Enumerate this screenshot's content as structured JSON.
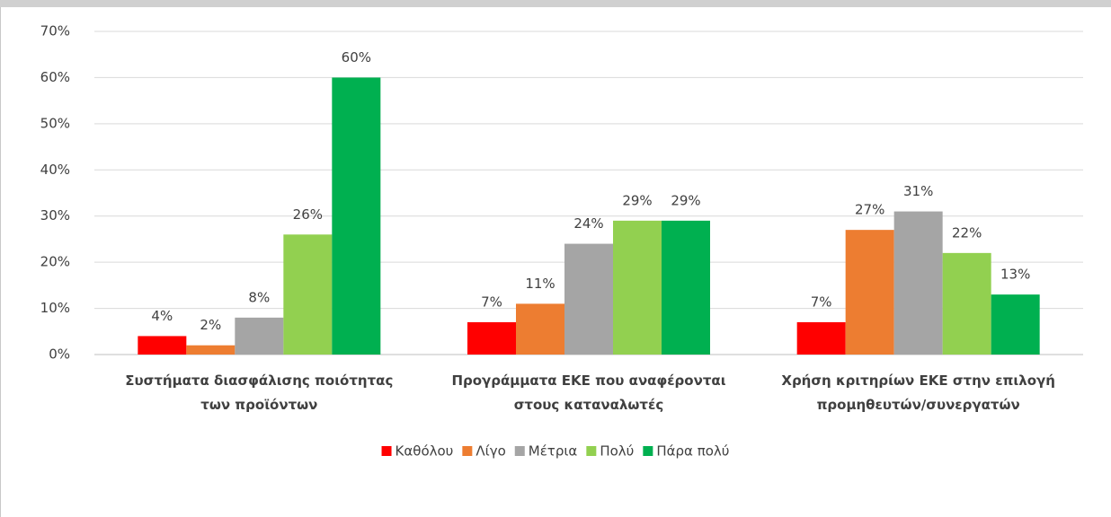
{
  "chart_data": {
    "type": "bar",
    "categories": [
      "Συστήματα διασφάλισης ποιότητας\nτων προϊόντων",
      "Προγράμματα ΕΚΕ που αναφέρονται\nστους καταναλωτές",
      "Χρήση κριτηρίων ΕΚΕ στην επιλογή\nπρομηθευτών/συνεργατών"
    ],
    "series": [
      {
        "name": "Καθόλου",
        "color": "#ff0000",
        "values": [
          4,
          7,
          7
        ],
        "value_labels": [
          "4%",
          "7%",
          "7%"
        ]
      },
      {
        "name": "Λίγο",
        "color": "#ed7d31",
        "values": [
          2,
          11,
          27
        ],
        "value_labels": [
          "2%",
          "11%",
          "27%"
        ]
      },
      {
        "name": "Μέτρια",
        "color": "#a5a5a5",
        "values": [
          8,
          24,
          31
        ],
        "value_labels": [
          "8%",
          "24%",
          "31%"
        ]
      },
      {
        "name": "Πολύ",
        "color": "#92d050",
        "values": [
          26,
          29,
          22
        ],
        "value_labels": [
          "26%",
          "29%",
          "22%"
        ]
      },
      {
        "name": "Πάρα πολύ",
        "color": "#00b050",
        "values": [
          60,
          29,
          13
        ],
        "value_labels": [
          "60%",
          "29%",
          "13%"
        ]
      }
    ],
    "ylim": [
      0,
      70
    ],
    "yticks": [
      {
        "value": 0,
        "label": "0%"
      },
      {
        "value": 10,
        "label": "10%"
      },
      {
        "value": 20,
        "label": "20%"
      },
      {
        "value": 30,
        "label": "30%"
      },
      {
        "value": 40,
        "label": "40%"
      },
      {
        "value": 50,
        "label": "50%"
      },
      {
        "value": 60,
        "label": "60%"
      },
      {
        "value": 70,
        "label": "70%"
      }
    ],
    "grid": true,
    "legend": "bottom"
  }
}
